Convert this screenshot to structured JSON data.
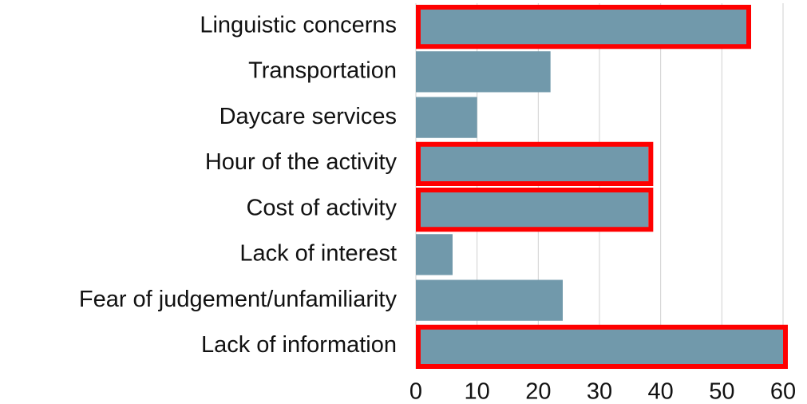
{
  "chart_data": {
    "type": "hbar",
    "categories": [
      "Linguistic concerns",
      "Transportation",
      "Daycare services",
      "Hour of the activity",
      "Cost of activity",
      "Lack of interest",
      "Fear of judgement/unfamiliarity",
      "Lack of information"
    ],
    "values": [
      54,
      22,
      10,
      38,
      38,
      6,
      24,
      60
    ],
    "color": "#7199ab",
    "highlighted": [
      true,
      false,
      false,
      true,
      true,
      false,
      false,
      true
    ],
    "highlight_color": "#ff0000",
    "xlim": [
      0,
      60
    ],
    "xticks": [
      0,
      10,
      20,
      30,
      40,
      50,
      60
    ],
    "grid": true
  }
}
